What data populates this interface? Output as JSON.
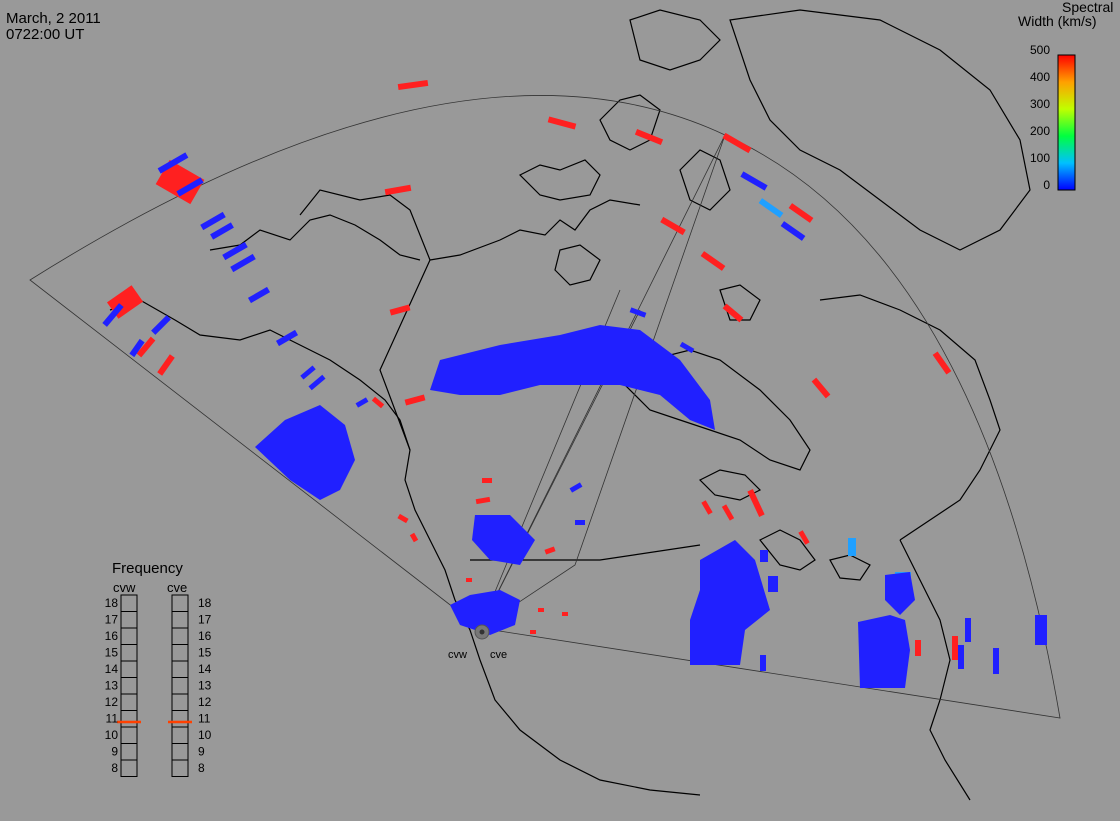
{
  "header": {
    "date": "March, 2 2011",
    "time": "0722:00 UT"
  },
  "colorbar": {
    "title_line1": "Spectral",
    "title_line2": "Width (km/s)",
    "ticks": [
      "500",
      "400",
      "300",
      "200",
      "100",
      "0"
    ],
    "scale_min": 0,
    "scale_max": 500
  },
  "frequency_panel": {
    "title": "Frequency",
    "radars": [
      "cvw",
      "cve"
    ],
    "ticks": [
      "18",
      "17",
      "16",
      "15",
      "14",
      "13",
      "12",
      "11",
      "10",
      "9",
      "8"
    ],
    "current_mhz": [
      10.8,
      10.8
    ],
    "marker_color": "#ff4000"
  },
  "radar_sites": [
    {
      "label": "cvw"
    },
    {
      "label": "cve"
    }
  ],
  "colors": {
    "background": "#999999",
    "coastline": "#000000",
    "low_width": "#2020ff",
    "mid_width": "#20a0ff",
    "high_width": "#ff2020"
  }
}
